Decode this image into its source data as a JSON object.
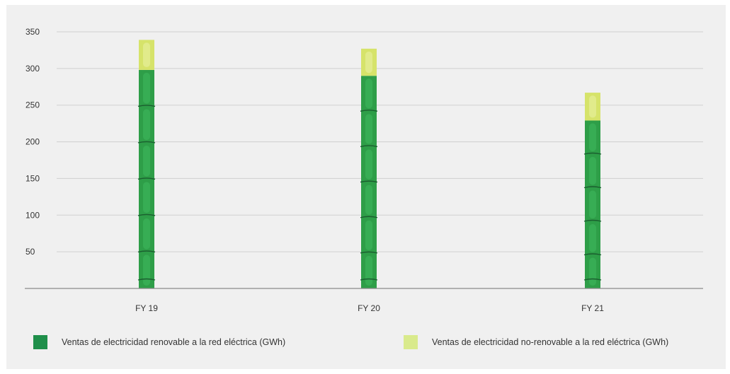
{
  "chart_data": {
    "type": "bar",
    "stacked": true,
    "categories": [
      "FY 19",
      "FY 20",
      "FY 21"
    ],
    "series": [
      {
        "name": "Ventas de electricidad renovable a la red eléctrica (GWh)",
        "values": [
          298,
          290,
          229
        ],
        "color": "#2e9e48"
      },
      {
        "name": "Ventas de electricidad no-renovable a la red eléctrica (GWh)",
        "values": [
          41,
          37,
          38
        ],
        "color": "#d6e36a"
      }
    ],
    "ylim": [
      0,
      350
    ],
    "yticks": [
      50,
      100,
      150,
      200,
      250,
      300,
      350
    ],
    "grid": true,
    "legend_position": "bottom"
  }
}
